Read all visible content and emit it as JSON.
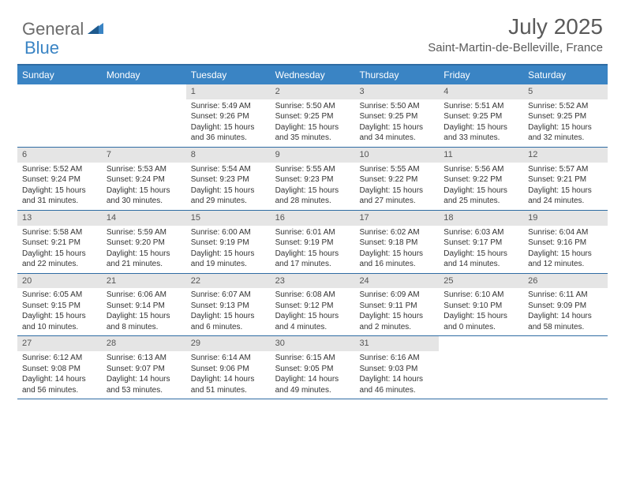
{
  "logo": {
    "text1": "General",
    "text2": "Blue"
  },
  "title": "July 2025",
  "location": "Saint-Martin-de-Belleville, France",
  "colors": {
    "header_bg": "#3a84c4",
    "border": "#2f6ca3",
    "daynum_bg": "#e5e5e5",
    "text": "#333333",
    "logo_gray": "#6b6b6b",
    "logo_blue": "#3a84c4"
  },
  "weekdays": [
    "Sunday",
    "Monday",
    "Tuesday",
    "Wednesday",
    "Thursday",
    "Friday",
    "Saturday"
  ],
  "weeks": [
    [
      null,
      null,
      {
        "n": "1",
        "sr": "5:49 AM",
        "ss": "9:26 PM",
        "dl": "15 hours and 36 minutes."
      },
      {
        "n": "2",
        "sr": "5:50 AM",
        "ss": "9:25 PM",
        "dl": "15 hours and 35 minutes."
      },
      {
        "n": "3",
        "sr": "5:50 AM",
        "ss": "9:25 PM",
        "dl": "15 hours and 34 minutes."
      },
      {
        "n": "4",
        "sr": "5:51 AM",
        "ss": "9:25 PM",
        "dl": "15 hours and 33 minutes."
      },
      {
        "n": "5",
        "sr": "5:52 AM",
        "ss": "9:25 PM",
        "dl": "15 hours and 32 minutes."
      }
    ],
    [
      {
        "n": "6",
        "sr": "5:52 AM",
        "ss": "9:24 PM",
        "dl": "15 hours and 31 minutes."
      },
      {
        "n": "7",
        "sr": "5:53 AM",
        "ss": "9:24 PM",
        "dl": "15 hours and 30 minutes."
      },
      {
        "n": "8",
        "sr": "5:54 AM",
        "ss": "9:23 PM",
        "dl": "15 hours and 29 minutes."
      },
      {
        "n": "9",
        "sr": "5:55 AM",
        "ss": "9:23 PM",
        "dl": "15 hours and 28 minutes."
      },
      {
        "n": "10",
        "sr": "5:55 AM",
        "ss": "9:22 PM",
        "dl": "15 hours and 27 minutes."
      },
      {
        "n": "11",
        "sr": "5:56 AM",
        "ss": "9:22 PM",
        "dl": "15 hours and 25 minutes."
      },
      {
        "n": "12",
        "sr": "5:57 AM",
        "ss": "9:21 PM",
        "dl": "15 hours and 24 minutes."
      }
    ],
    [
      {
        "n": "13",
        "sr": "5:58 AM",
        "ss": "9:21 PM",
        "dl": "15 hours and 22 minutes."
      },
      {
        "n": "14",
        "sr": "5:59 AM",
        "ss": "9:20 PM",
        "dl": "15 hours and 21 minutes."
      },
      {
        "n": "15",
        "sr": "6:00 AM",
        "ss": "9:19 PM",
        "dl": "15 hours and 19 minutes."
      },
      {
        "n": "16",
        "sr": "6:01 AM",
        "ss": "9:19 PM",
        "dl": "15 hours and 17 minutes."
      },
      {
        "n": "17",
        "sr": "6:02 AM",
        "ss": "9:18 PM",
        "dl": "15 hours and 16 minutes."
      },
      {
        "n": "18",
        "sr": "6:03 AM",
        "ss": "9:17 PM",
        "dl": "15 hours and 14 minutes."
      },
      {
        "n": "19",
        "sr": "6:04 AM",
        "ss": "9:16 PM",
        "dl": "15 hours and 12 minutes."
      }
    ],
    [
      {
        "n": "20",
        "sr": "6:05 AM",
        "ss": "9:15 PM",
        "dl": "15 hours and 10 minutes."
      },
      {
        "n": "21",
        "sr": "6:06 AM",
        "ss": "9:14 PM",
        "dl": "15 hours and 8 minutes."
      },
      {
        "n": "22",
        "sr": "6:07 AM",
        "ss": "9:13 PM",
        "dl": "15 hours and 6 minutes."
      },
      {
        "n": "23",
        "sr": "6:08 AM",
        "ss": "9:12 PM",
        "dl": "15 hours and 4 minutes."
      },
      {
        "n": "24",
        "sr": "6:09 AM",
        "ss": "9:11 PM",
        "dl": "15 hours and 2 minutes."
      },
      {
        "n": "25",
        "sr": "6:10 AM",
        "ss": "9:10 PM",
        "dl": "15 hours and 0 minutes."
      },
      {
        "n": "26",
        "sr": "6:11 AM",
        "ss": "9:09 PM",
        "dl": "14 hours and 58 minutes."
      }
    ],
    [
      {
        "n": "27",
        "sr": "6:12 AM",
        "ss": "9:08 PM",
        "dl": "14 hours and 56 minutes."
      },
      {
        "n": "28",
        "sr": "6:13 AM",
        "ss": "9:07 PM",
        "dl": "14 hours and 53 minutes."
      },
      {
        "n": "29",
        "sr": "6:14 AM",
        "ss": "9:06 PM",
        "dl": "14 hours and 51 minutes."
      },
      {
        "n": "30",
        "sr": "6:15 AM",
        "ss": "9:05 PM",
        "dl": "14 hours and 49 minutes."
      },
      {
        "n": "31",
        "sr": "6:16 AM",
        "ss": "9:03 PM",
        "dl": "14 hours and 46 minutes."
      },
      null,
      null
    ]
  ],
  "labels": {
    "sunrise": "Sunrise:",
    "sunset": "Sunset:",
    "daylight": "Daylight:"
  }
}
